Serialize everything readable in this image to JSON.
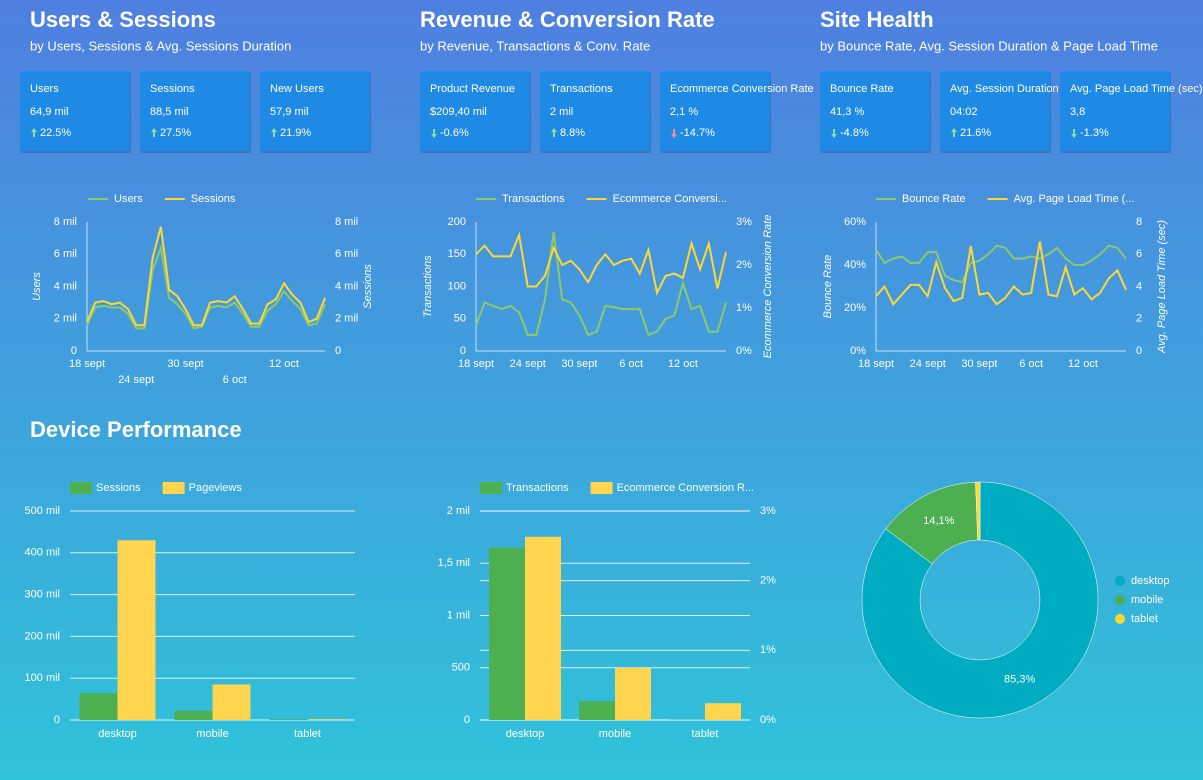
{
  "sections": [
    {
      "title": "Users & Sessions",
      "subtitle": "by Users, Sessions & Avg. Sessions Duration"
    },
    {
      "title": "Revenue & Conversion Rate",
      "subtitle": "by Revenue, Transactions & Conv. Rate"
    },
    {
      "title": "Site Health",
      "subtitle": "by Bounce Rate, Avg. Session Duration & Page Load Time"
    },
    {
      "title": "Device Performance"
    }
  ],
  "scorecards": [
    {
      "label": "Users",
      "value": "64,9 mil",
      "change": "22.5%",
      "direction": "up",
      "color": "#8fdc9f"
    },
    {
      "label": "Sessions",
      "value": "88,5 mil",
      "change": "27.5%",
      "direction": "up",
      "color": "#8fdc9f"
    },
    {
      "label": "New Users",
      "value": "57,9 mil",
      "change": "21.9%",
      "direction": "up",
      "color": "#8fdc9f"
    },
    {
      "label": "Product Revenue",
      "value": "$209,40 mil",
      "change": "-0.6%",
      "direction": "down",
      "color": "#8fdc9f"
    },
    {
      "label": "Transactions",
      "value": "2 mil",
      "change": "8.8%",
      "direction": "up",
      "color": "#8fdc9f"
    },
    {
      "label": "Ecommerce Conversion Rate",
      "value": "2,1 %",
      "change": "-14.7%",
      "direction": "down",
      "color": "#ff8a80"
    },
    {
      "label": "Bounce Rate",
      "value": "41,3 %",
      "change": "-4.8%",
      "direction": "down",
      "color": "#8fdc9f"
    },
    {
      "label": "Avg. Session Duration",
      "value": "04:02",
      "change": "21.6%",
      "direction": "up",
      "color": "#8fdc9f"
    },
    {
      "label": "Avg. Page Load Time (sec)",
      "value": "3,8",
      "change": "-1.3%",
      "direction": "down",
      "color": "#8fdc9f"
    }
  ],
  "chart_data": [
    {
      "type": "line",
      "ylabel": "Users",
      "y2label": "Sessions",
      "grid": false,
      "categories": [
        "18 sept",
        null,
        null,
        null,
        null,
        null,
        "24 sept",
        null,
        null,
        null,
        null,
        null,
        "30 sept",
        null,
        null,
        null,
        null,
        null,
        "6 oct",
        null,
        null,
        null,
        null,
        null,
        "12 oct",
        null,
        null,
        null,
        null,
        null
      ],
      "ylim": [
        0,
        8000
      ],
      "yticks": [
        0,
        {
          "value": 2000,
          "label": "2 mil"
        },
        {
          "value": 4000,
          "label": "4 mil"
        },
        {
          "value": 6000,
          "label": "6 mil"
        },
        {
          "value": 8000,
          "label": "8 mil"
        }
      ],
      "y2lim": [
        0,
        8000
      ],
      "y2ticks": [
        0,
        {
          "value": 2000,
          "label": "2 mil"
        },
        {
          "value": 4000,
          "label": "4 mil"
        },
        {
          "value": 6000,
          "label": "6 mil"
        },
        {
          "value": 8000,
          "label": "8 mil"
        }
      ],
      "series": [
        {
          "name": "Users",
          "color": "#8bc96a",
          "values": [
            1600,
            2700,
            2800,
            2700,
            2700,
            2300,
            1400,
            1400,
            5000,
            6400,
            3300,
            2900,
            2300,
            1400,
            1500,
            2700,
            2800,
            2700,
            3000,
            2300,
            1500,
            1500,
            2500,
            2900,
            3700,
            3100,
            2600,
            1600,
            1700,
            2900
          ]
        },
        {
          "name": "Sessions",
          "color": "#fdd835",
          "axis": "y2",
          "values": [
            1800,
            3000,
            3100,
            2900,
            3000,
            2600,
            1600,
            1600,
            5800,
            7700,
            3800,
            3400,
            2600,
            1600,
            1600,
            3000,
            3100,
            3000,
            3400,
            2600,
            1700,
            1700,
            2900,
            3200,
            4200,
            3500,
            3000,
            1800,
            2000,
            3300
          ]
        }
      ]
    },
    {
      "type": "line",
      "ylabel": "Transactions",
      "y2label": "Ecommerce Conversion Rate",
      "grid": false,
      "categories": [
        "18 sept",
        null,
        null,
        null,
        null,
        null,
        "24 sept",
        null,
        null,
        null,
        null,
        null,
        "30 sept",
        null,
        null,
        null,
        null,
        null,
        "6 oct",
        null,
        null,
        null,
        null,
        null,
        "12 oct",
        null,
        null,
        null,
        null,
        null
      ],
      "ylim": [
        0,
        200
      ],
      "yticks": [
        0,
        50,
        100,
        150,
        200
      ],
      "y2lim": [
        0,
        3
      ],
      "y2ticks": [
        {
          "value": 0,
          "label": "0%"
        },
        {
          "value": 1,
          "label": "1%"
        },
        {
          "value": 2,
          "label": "2%"
        },
        {
          "value": 3,
          "label": "3%"
        }
      ],
      "series": [
        {
          "name": "Transactions",
          "color": "#8bc96a",
          "values": [
            40,
            75,
            70,
            65,
            70,
            60,
            25,
            25,
            80,
            185,
            80,
            75,
            55,
            25,
            30,
            70,
            68,
            65,
            65,
            65,
            25,
            30,
            50,
            55,
            105,
            65,
            70,
            30,
            30,
            75
          ]
        },
        {
          "name": "Ecommerce Conversi...",
          "color": "#fdd835",
          "axis": "y2",
          "values": [
            2.25,
            2.45,
            2.2,
            2.2,
            2.2,
            2.7,
            1.5,
            1.5,
            1.75,
            2.4,
            2.0,
            2.1,
            1.9,
            1.6,
            2.0,
            2.25,
            2.0,
            2.1,
            2.15,
            1.8,
            2.35,
            1.35,
            1.75,
            1.8,
            1.7,
            2.5,
            1.9,
            2.5,
            1.45,
            2.3
          ]
        }
      ]
    },
    {
      "type": "line",
      "ylabel": "Bounce Rate",
      "y2label": "Avg. Page Load Time (sec)",
      "grid": false,
      "categories": [
        "18 sept",
        null,
        null,
        null,
        null,
        null,
        "24 sept",
        null,
        null,
        null,
        null,
        null,
        "30 sept",
        null,
        null,
        null,
        null,
        null,
        "6 oct",
        null,
        null,
        null,
        null,
        null,
        "12 oct",
        null,
        null,
        null,
        null,
        null
      ],
      "ylim": [
        0,
        60
      ],
      "yticks": [
        {
          "value": 0,
          "label": "0%"
        },
        {
          "value": 20,
          "label": "20%"
        },
        {
          "value": 40,
          "label": "40%"
        },
        {
          "value": 60,
          "label": "60%"
        }
      ],
      "y2lim": [
        0,
        8
      ],
      "y2ticks": [
        0,
        2,
        4,
        6,
        8
      ],
      "series": [
        {
          "name": "Bounce Rate",
          "color": "#8bc96a",
          "values": [
            47,
            41,
            43,
            44,
            41,
            41,
            46,
            46,
            35,
            33,
            32,
            41,
            42,
            45,
            49,
            48,
            43,
            43,
            44,
            43,
            45,
            48,
            43,
            40,
            40,
            42,
            45,
            49,
            48,
            43
          ]
        },
        {
          "name": "Avg. Page Load Time (...",
          "color": "#fdd835",
          "axis": "y2",
          "values": [
            3.4,
            4.0,
            2.9,
            3.5,
            4.1,
            4.1,
            3.4,
            5.5,
            3.9,
            3.1,
            3.3,
            6.5,
            3.5,
            3.6,
            2.9,
            3.3,
            4.0,
            3.5,
            3.6,
            6.8,
            3.5,
            3.4,
            5.2,
            3.5,
            3.9,
            3.2,
            3.6,
            4.5,
            5.0,
            3.8
          ]
        }
      ]
    },
    {
      "type": "bar",
      "grid": true,
      "categories": [
        "desktop",
        "mobile",
        "tablet"
      ],
      "ylim": [
        0,
        500000
      ],
      "yticks": [
        0,
        {
          "value": 100000,
          "label": "100 mil"
        },
        {
          "value": 200000,
          "label": "200 mil"
        },
        {
          "value": 300000,
          "label": "300 mil"
        },
        {
          "value": 400000,
          "label": "400 mil"
        },
        {
          "value": 500000,
          "label": "500 mil"
        }
      ],
      "series": [
        {
          "name": "Sessions",
          "color": "#4caf50",
          "values": [
            64000,
            22000,
            1500
          ]
        },
        {
          "name": "Pageviews",
          "color": "#ffd54f",
          "values": [
            430000,
            85000,
            2000
          ]
        }
      ]
    },
    {
      "type": "bar",
      "grid": true,
      "categories": [
        "desktop",
        "mobile",
        "tablet"
      ],
      "ylim": [
        0,
        2000
      ],
      "yticks": [
        0,
        500,
        {
          "value": 1000,
          "label": "1 mil"
        },
        {
          "value": 1500,
          "label": "1,5 mil"
        },
        {
          "value": 2000,
          "label": "2 mil"
        }
      ],
      "y2lim": [
        0,
        3
      ],
      "y2ticks": [
        {
          "value": 0,
          "label": "0%"
        },
        {
          "value": 1,
          "label": "1%"
        },
        {
          "value": 2,
          "label": "2%"
        },
        {
          "value": 3,
          "label": "3%"
        }
      ],
      "series": [
        {
          "name": "Transactions",
          "color": "#4caf50",
          "values": [
            1650,
            180,
            2
          ]
        },
        {
          "name": "Ecommerce Conversion R...",
          "color": "#ffd54f",
          "axis": "y2",
          "values": [
            2.63,
            0.75,
            0.24
          ]
        }
      ]
    },
    {
      "type": "pie",
      "donut": true,
      "categories": [
        "desktop",
        "mobile",
        "tablet"
      ],
      "values": [
        85.3,
        14.1,
        0.6
      ],
      "value_labels": [
        "85,3%",
        "14,1%",
        null
      ],
      "colors": [
        "#00acc1",
        "#4caf50",
        "#fdd835"
      ]
    }
  ]
}
